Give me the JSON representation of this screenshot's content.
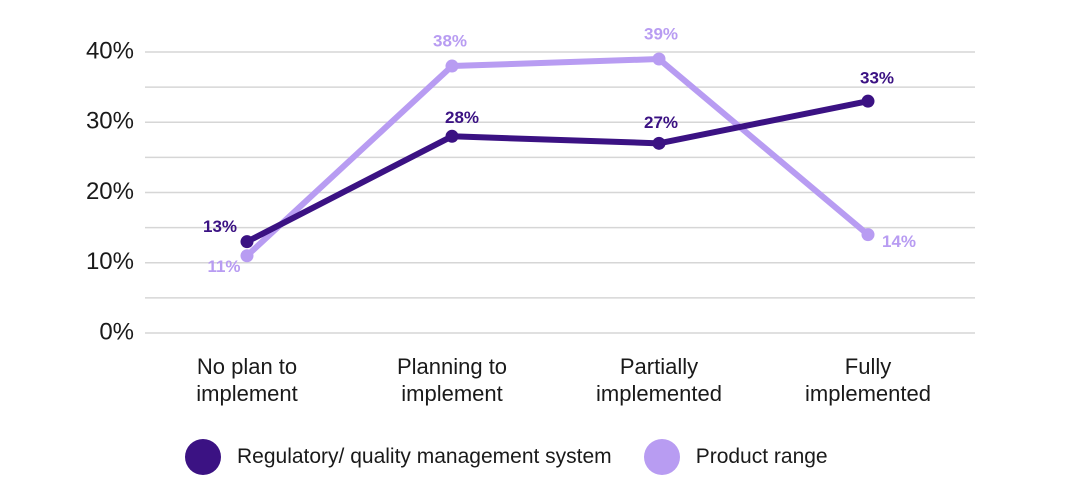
{
  "chart_data": {
    "type": "line",
    "categories": [
      [
        "No plan to",
        "implement"
      ],
      [
        "Planning to",
        "implement"
      ],
      [
        "Partially",
        "implemented"
      ],
      [
        "Fully",
        "implemented"
      ]
    ],
    "series": [
      {
        "name": "Regulatory/ quality management system",
        "values": [
          13,
          28,
          27,
          33
        ],
        "labels": [
          "13%",
          "28%",
          "27%",
          "33%"
        ],
        "color": "#3b1283"
      },
      {
        "name": "Product range",
        "values": [
          11,
          38,
          39,
          14
        ],
        "labels": [
          "11%",
          "38%",
          "39%",
          "14%"
        ],
        "color": "#b89cf2"
      }
    ],
    "yticks": [
      "0%",
      "10%",
      "20%",
      "30%",
      "40%"
    ],
    "ylim": [
      0,
      40
    ],
    "grid": true,
    "legend_position": "bottom"
  }
}
